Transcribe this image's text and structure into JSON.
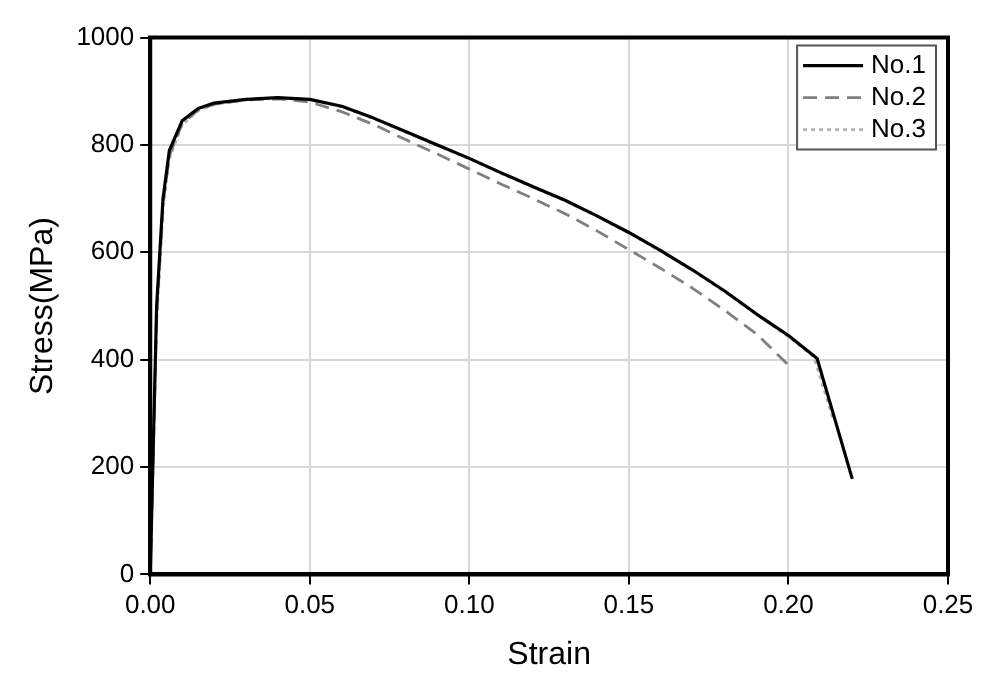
{
  "chart_data": {
    "type": "line",
    "xlabel": "Strain",
    "ylabel": "Stress(MPa)",
    "xlim": [
      0,
      0.25
    ],
    "xticks": [
      {
        "value": 0,
        "label": "0.00"
      },
      {
        "value": 0.05,
        "label": "0.05"
      },
      {
        "value": 0.1,
        "label": "0.10"
      },
      {
        "value": 0.15,
        "label": "0.15"
      },
      {
        "value": 0.2,
        "label": "0.20"
      },
      {
        "value": 0.25,
        "label": "0.25"
      }
    ],
    "ylim": [
      0,
      1000
    ],
    "yticks": [
      0,
      200,
      400,
      600,
      800,
      1000
    ],
    "grid": true,
    "legend": "top right",
    "marker": "none",
    "series": [
      {
        "name": "No.1",
        "color": "#000000",
        "line_style": "solid",
        "x": [
          0,
          0.002,
          0.004,
          0.006,
          0.01,
          0.015,
          0.02,
          0.03,
          0.04,
          0.05,
          0.06,
          0.07,
          0.08,
          0.09,
          0.1,
          0.11,
          0.12,
          0.13,
          0.14,
          0.15,
          0.16,
          0.17,
          0.18,
          0.19,
          0.2,
          0.209,
          0.22
        ],
        "values": [
          0,
          500,
          700,
          790,
          845,
          868,
          878,
          885,
          888,
          885,
          872,
          850,
          825,
          800,
          775,
          748,
          722,
          697,
          668,
          637,
          603,
          567,
          528,
          485,
          445,
          402,
          178
        ]
      },
      {
        "name": "No.2",
        "color": "#808080",
        "line_style": "dashed",
        "x": [
          0,
          0.002,
          0.004,
          0.006,
          0.01,
          0.015,
          0.02,
          0.03,
          0.04,
          0.05,
          0.06,
          0.07,
          0.08,
          0.09,
          0.1,
          0.11,
          0.12,
          0.13,
          0.14,
          0.15,
          0.16,
          0.17,
          0.18,
          0.19,
          0.2
        ],
        "values": [
          0,
          480,
          690,
          780,
          840,
          865,
          876,
          884,
          886,
          880,
          862,
          838,
          810,
          783,
          755,
          727,
          700,
          672,
          640,
          605,
          570,
          533,
          492,
          448,
          390
        ]
      },
      {
        "name": "No.3",
        "color": "#b0b0b0",
        "line_style": "dotted",
        "x": [
          0,
          0.002,
          0.004,
          0.006,
          0.01,
          0.015,
          0.02,
          0.03,
          0.04,
          0.05,
          0.06,
          0.07,
          0.08,
          0.09,
          0.1,
          0.11,
          0.12,
          0.13,
          0.14,
          0.15,
          0.16,
          0.17,
          0.18,
          0.19,
          0.2,
          0.208,
          0.214
        ],
        "values": [
          0,
          470,
          680,
          775,
          838,
          864,
          875,
          884,
          887,
          884,
          871,
          849,
          824,
          799,
          774,
          747,
          721,
          696,
          667,
          636,
          602,
          566,
          527,
          484,
          443,
          405,
          290
        ]
      }
    ]
  }
}
